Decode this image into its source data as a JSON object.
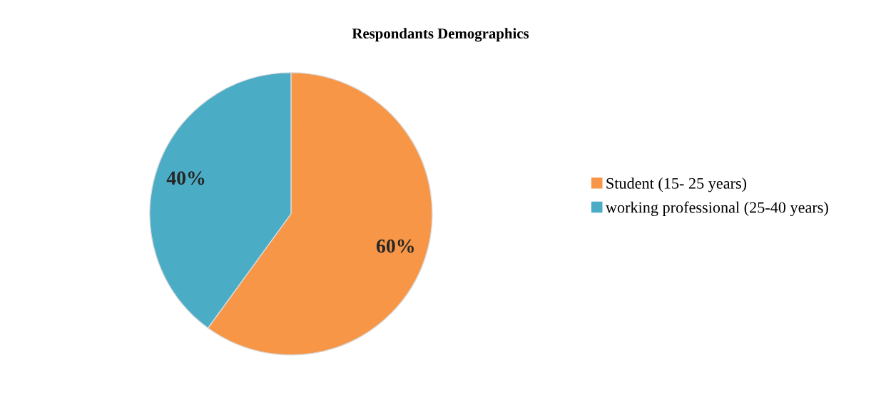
{
  "chart_data": {
    "type": "pie",
    "title": "Respondants Demographics",
    "categories": [
      "Student (15- 25 years)",
      "working professional (25-40 years)"
    ],
    "values": [
      60,
      40
    ],
    "colors": [
      "#f79646",
      "#4bacc6"
    ],
    "value_labels": [
      "60%",
      "40%"
    ],
    "legend": "right"
  }
}
